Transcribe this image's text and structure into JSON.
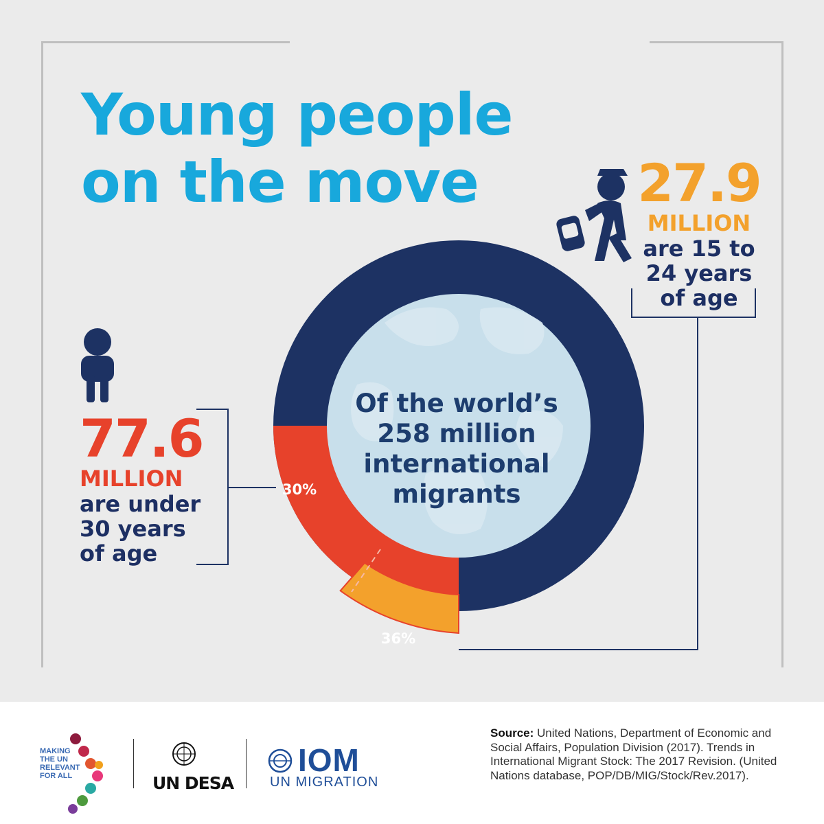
{
  "title": {
    "line1": "Young people",
    "line2": "on the move"
  },
  "colors": {
    "title": "#18a8dc",
    "navy": "#1d3263",
    "red": "#e7422b",
    "orange": "#f3a12c",
    "globe": "#c8dfeb",
    "text_navy": "#1d2f63"
  },
  "globe_text": {
    "line1": "Of the world’s",
    "line2": "258 million",
    "line3": "international",
    "line4": "migrants"
  },
  "stat_young": {
    "value": "77.6",
    "unit": "MILLION",
    "line1": "are under",
    "line2": "30 years",
    "line3": "of age",
    "icon": "child-icon"
  },
  "stat_youth": {
    "value": "27.9",
    "unit": "MILLION",
    "line1": "are 15 to",
    "line2": "24 years",
    "line3": "of age",
    "icon": "walking-youth-icon"
  },
  "chart_data": {
    "type": "pie",
    "total_label": "258 million international migrants",
    "slices": [
      {
        "label": "30%",
        "value": 30,
        "color": "#e7422b"
      },
      {
        "label": "36%",
        "value": 36,
        "color": "#f3a12c"
      }
    ]
  },
  "footer": {
    "logo_making": [
      "MAKING",
      "THE UN",
      "RELEVANT",
      "FOR ALL"
    ],
    "undesa": "UN DESA",
    "iom": "IOM",
    "iom_sub": "UN MIGRATION",
    "source_label": "Source:",
    "source_text": "United Nations, Department of Economic and Social Affairs, Population Division (2017). Trends in International Migrant Stock: The 2017 Revision. (United Nations database, POP/DB/MIG/Stock/Rev.2017)."
  }
}
